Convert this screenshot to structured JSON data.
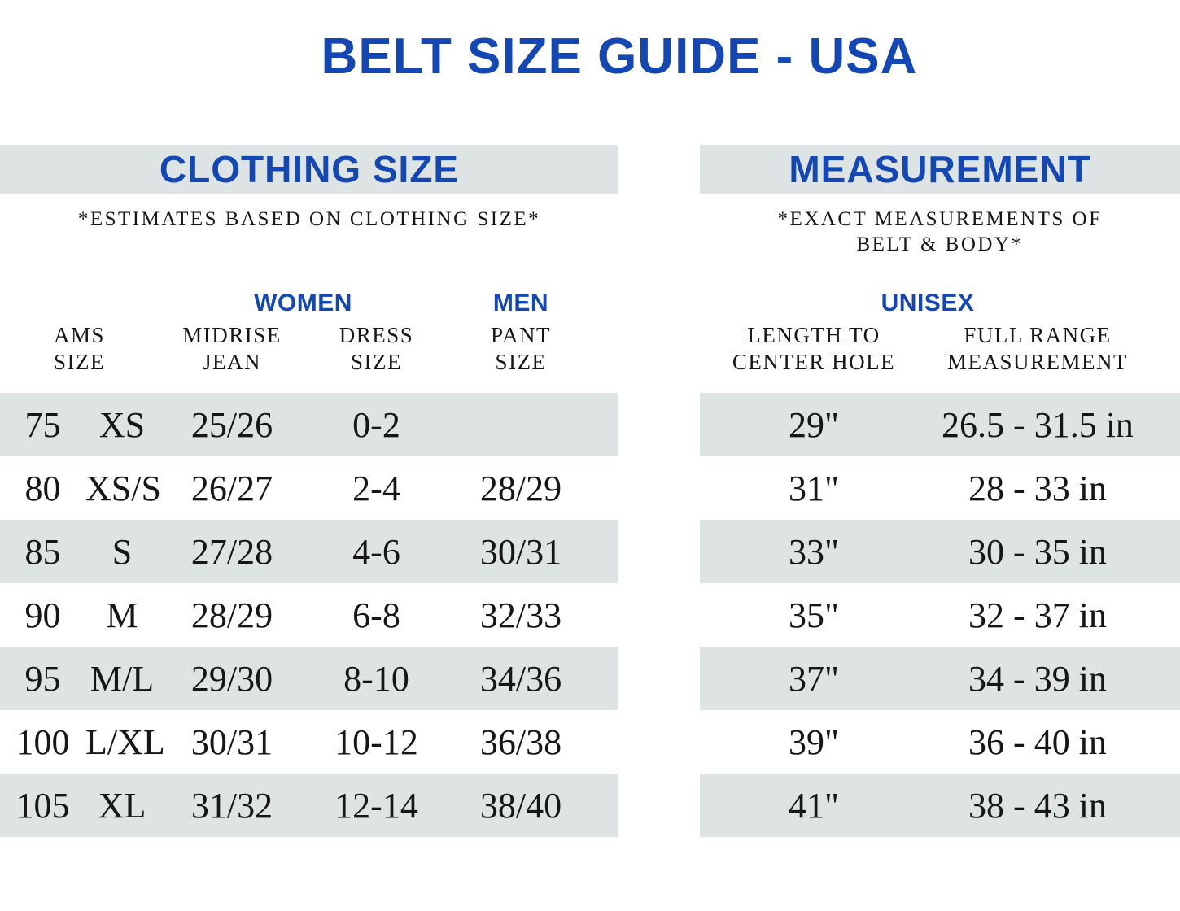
{
  "title": "BELT SIZE GUIDE - USA",
  "colors": {
    "accent_blue": "#1347b4",
    "band_gray": "#dee3e3",
    "text": "#161616"
  },
  "left_section": {
    "header": "CLOTHING SIZE",
    "note": "*ESTIMATES BASED ON CLOTHING SIZE*",
    "group_women": "WOMEN",
    "group_men": "MEN",
    "columns": [
      {
        "line1": "AMS",
        "line2": "SIZE"
      },
      {
        "line1": "MIDRISE",
        "line2": "JEAN"
      },
      {
        "line1": "DRESS",
        "line2": "SIZE"
      },
      {
        "line1": "PANT",
        "line2": "SIZE"
      }
    ],
    "rows": [
      {
        "ams_cm": "75",
        "ams_letter": "XS",
        "midrise": "25/26",
        "dress": "0-2",
        "pant": ""
      },
      {
        "ams_cm": "80",
        "ams_letter": "XS/S",
        "midrise": "26/27",
        "dress": "2-4",
        "pant": "28/29"
      },
      {
        "ams_cm": "85",
        "ams_letter": "S",
        "midrise": "27/28",
        "dress": "4-6",
        "pant": "30/31"
      },
      {
        "ams_cm": "90",
        "ams_letter": "M",
        "midrise": "28/29",
        "dress": "6-8",
        "pant": "32/33"
      },
      {
        "ams_cm": "95",
        "ams_letter": "M/L",
        "midrise": "29/30",
        "dress": "8-10",
        "pant": "34/36"
      },
      {
        "ams_cm": "100",
        "ams_letter": "L/XL",
        "midrise": "30/31",
        "dress": "10-12",
        "pant": "36/38"
      },
      {
        "ams_cm": "105",
        "ams_letter": "XL",
        "midrise": "31/32",
        "dress": "12-14",
        "pant": "38/40"
      }
    ]
  },
  "right_section": {
    "header": "MEASUREMENT",
    "note": "*EXACT MEASUREMENTS OF BELT & BODY*",
    "group_unisex": "UNISEX",
    "columns": [
      {
        "line1": "LENGTH TO",
        "line2": "CENTER HOLE"
      },
      {
        "line1": "FULL RANGE",
        "line2": "MEASUREMENT"
      }
    ],
    "rows": [
      {
        "length": "29\"",
        "range": "26.5 - 31.5 in"
      },
      {
        "length": "31\"",
        "range": "28 - 33 in"
      },
      {
        "length": "33\"",
        "range": "30 - 35 in"
      },
      {
        "length": "35\"",
        "range": "32 - 37 in"
      },
      {
        "length": "37\"",
        "range": "34 - 39 in"
      },
      {
        "length": "39\"",
        "range": "36 - 40 in"
      },
      {
        "length": "41\"",
        "range": "38 - 43 in"
      }
    ]
  }
}
